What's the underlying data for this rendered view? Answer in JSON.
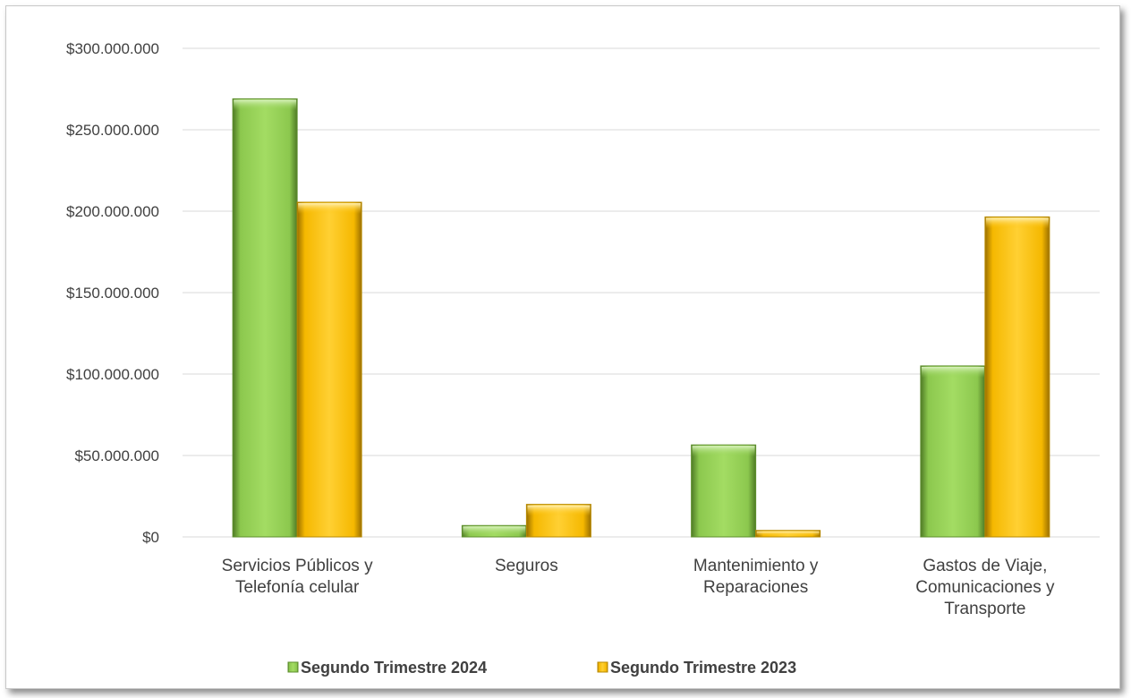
{
  "chart_data": {
    "type": "bar",
    "categories": [
      [
        "Servicios Públicos  y",
        "Telefonía celular"
      ],
      [
        "Seguros"
      ],
      [
        "Mantenimiento y",
        "Reparaciones"
      ],
      [
        "Gastos de Viaje,",
        "Comunicaciones y",
        "Transporte"
      ]
    ],
    "series": [
      {
        "name": "Segundo Trimestre 2024",
        "values": [
          269000000,
          7000000,
          56500000,
          105000000
        ],
        "color": "#92D050"
      },
      {
        "name": "Segundo Trimestre 2023",
        "values": [
          205500000,
          20000000,
          4000000,
          196500000
        ],
        "color": "#FFC000"
      }
    ],
    "ylim": [
      0,
      300000000
    ],
    "yticks": [
      0,
      50000000,
      100000000,
      150000000,
      200000000,
      250000000,
      300000000
    ],
    "ytick_labels": [
      "$0",
      "$50.000.000",
      "$100.000.000",
      "$150.000.000",
      "$200.000.000",
      "$250.000.000",
      "$300.000.000"
    ],
    "grid": true,
    "legend_position": "bottom"
  }
}
